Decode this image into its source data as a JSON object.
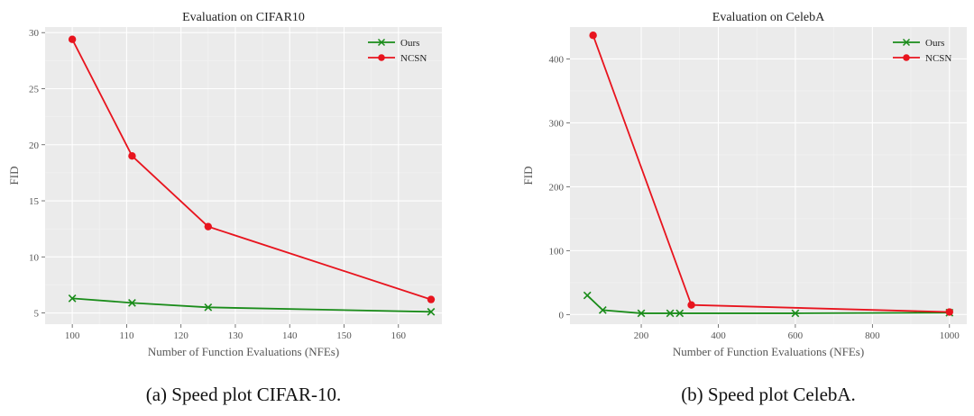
{
  "chart_data": [
    {
      "type": "line",
      "title": "Evaluation on CIFAR10",
      "xlabel": "Number of Function Evaluations (NFEs)",
      "ylabel": "FID",
      "xlim": [
        95,
        168
      ],
      "ylim": [
        4,
        30.5
      ],
      "xticks": [
        100,
        110,
        120,
        130,
        140,
        150,
        160
      ],
      "yticks": [
        5,
        10,
        15,
        20,
        25,
        30
      ],
      "grid": true,
      "legend_position": "top-right",
      "caption": "(a) Speed plot CIFAR-10.",
      "series": [
        {
          "name": "Ours",
          "color": "#1a8c1a",
          "marker": "x",
          "x": [
            100,
            111,
            125,
            166
          ],
          "y": [
            6.3,
            5.9,
            5.5,
            5.1
          ]
        },
        {
          "name": "NCSN",
          "color": "#e8141e",
          "marker": "circle",
          "x": [
            100,
            111,
            125,
            166
          ],
          "y": [
            29.4,
            19.0,
            12.7,
            6.2
          ]
        }
      ]
    },
    {
      "type": "line",
      "title": "Evaluation on CelebA",
      "xlabel": "Number of Function Evaluations (NFEs)",
      "ylabel": "FID",
      "xlim": [
        15,
        1045
      ],
      "ylim": [
        -15,
        450
      ],
      "xticks": [
        200,
        400,
        600,
        800,
        1000
      ],
      "yticks": [
        0,
        100,
        200,
        300,
        400
      ],
      "grid": true,
      "legend_position": "top-right",
      "caption": "(b) Speed plot CelebA.",
      "series": [
        {
          "name": "Ours",
          "color": "#1a8c1a",
          "marker": "x",
          "x": [
            60,
            100,
            200,
            275,
            300,
            600,
            1000
          ],
          "y": [
            30,
            7,
            2,
            2,
            2,
            2,
            3
          ]
        },
        {
          "name": "NCSN",
          "color": "#e8141e",
          "marker": "circle",
          "x": [
            75,
            330,
            1000
          ],
          "y": [
            437,
            15,
            4
          ]
        }
      ]
    }
  ]
}
